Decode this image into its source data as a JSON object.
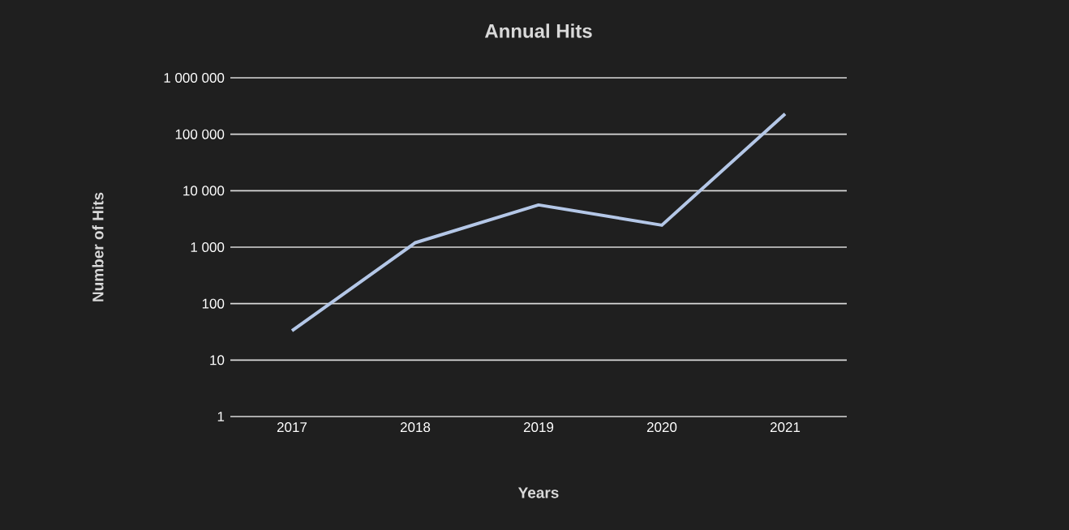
{
  "chart_data": {
    "type": "line",
    "title": "Annual Hits",
    "xlabel": "Years",
    "ylabel": "Number of Hits",
    "categories": [
      "2017",
      "2018",
      "2019",
      "2020",
      "2021"
    ],
    "series": [
      {
        "color": "#b4c7e7",
        "values": [
          33,
          1200,
          5600,
          2450,
          230000
        ]
      }
    ],
    "log": "y",
    "ylim": [
      1,
      1000000
    ],
    "yticks": [
      {
        "value": 1,
        "label": "1"
      },
      {
        "value": 10,
        "label": "10"
      },
      {
        "value": 100,
        "label": "100"
      },
      {
        "value": 1000,
        "label": "1 000"
      },
      {
        "value": 10000,
        "label": "10 000"
      },
      {
        "value": 100000,
        "label": "100 000"
      },
      {
        "value": 1000000,
        "label": "1 000 000"
      }
    ],
    "grid": "y",
    "marker": "none",
    "line_style": "solid"
  }
}
